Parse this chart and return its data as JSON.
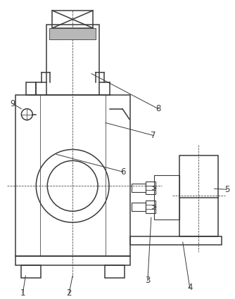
{
  "bg_color": "#ffffff",
  "line_color": "#3a3a3a",
  "lw": 1.1,
  "tlw": 0.55,
  "fs": 8.5
}
